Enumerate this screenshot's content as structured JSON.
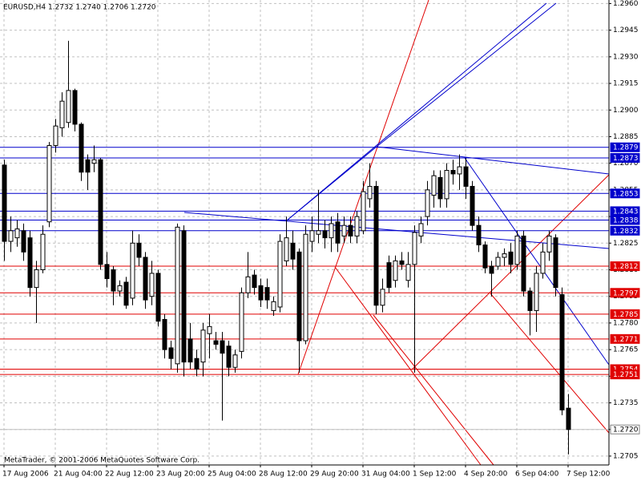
{
  "chart_data": {
    "type": "candlestick",
    "title": "EURUSD,H4  1.2732 1.2740 1.2706 1.2720",
    "footer": "MetaTrader, © 2001-2006 MetaQuotes Software Corp.",
    "categories": [
      "17 Aug 2006",
      null,
      null,
      null,
      null,
      null,
      null,
      null,
      "21 Aug 04:00",
      null,
      null,
      null,
      null,
      null,
      null,
      null,
      "22 Aug 12:00",
      null,
      null,
      null,
      null,
      null,
      null,
      null,
      "23 Aug 20:00",
      null,
      null,
      null,
      null,
      null,
      null,
      null,
      "25 Aug 04:00",
      null,
      null,
      null,
      null,
      null,
      null,
      null,
      "28 Aug 12:00",
      null,
      null,
      null,
      null,
      null,
      null,
      null,
      "29 Aug 20:00",
      null,
      null,
      null,
      null,
      null,
      null,
      null,
      "31 Aug 04:00",
      null,
      null,
      null,
      null,
      null,
      null,
      null,
      "1 Sep 12:00",
      null,
      null,
      null,
      null,
      null,
      null,
      null,
      "4 Sep 20:00",
      null,
      null,
      null,
      null,
      null,
      null,
      null,
      "6 Sep 04:00",
      null,
      null,
      null,
      null,
      null,
      null,
      null,
      "7 Sep 12:00"
    ],
    "open": [
      1.2869,
      1.2826,
      1.2828,
      1.2832,
      1.2828,
      1.28,
      1.281,
      1.2837,
      1.288,
      1.289,
      1.2893,
      1.2911,
      1.2892,
      1.2872,
      1.287,
      1.2872,
      1.2813,
      1.281,
      1.2798,
      1.2803,
      1.2794,
      1.2825,
      1.2817,
      1.2795,
      1.2808,
      1.2782,
      1.2766,
      1.2757,
      1.2832,
      1.2771,
      1.276,
      1.2758,
      1.2774,
      1.277,
      1.277,
      1.2767,
      1.2755,
      1.2764,
      1.2797,
      1.2807,
      1.2801,
      1.28,
      1.2787,
      1.2789,
      1.2815,
      1.2825,
      1.282,
      1.277,
      1.2826,
      1.283,
      1.2832,
      1.2828,
      1.2837,
      1.2829,
      1.2835,
      1.2829,
      1.2832,
      1.285,
      1.2857,
      1.279,
      1.2814,
      1.2804,
      1.2815,
      1.2804,
      1.2813,
      1.2829,
      1.284,
      1.2852,
      1.2862,
      1.285,
      1.2866,
      1.2864,
      1.2868,
      1.2857,
      1.2835,
      1.2824,
      1.2812,
      1.2812,
      1.2817,
      1.282,
      1.2813,
      1.2829,
      1.2798,
      1.2787,
      1.2808,
      1.282,
      1.2828,
      1.2796,
      1.2732
    ],
    "high": [
      1.2872,
      1.284,
      1.2838,
      1.2836,
      1.2832,
      1.2815,
      1.2835,
      1.2882,
      1.2895,
      1.291,
      1.2939,
      1.2912,
      1.2893,
      1.2875,
      1.288,
      1.2873,
      1.282,
      1.2812,
      1.2804,
      1.2806,
      1.2832,
      1.283,
      1.282,
      1.2815,
      1.281,
      1.2785,
      1.277,
      1.2836,
      1.2835,
      1.278,
      1.2765,
      1.278,
      1.2785,
      1.2775,
      1.2775,
      1.277,
      1.2765,
      1.28,
      1.282,
      1.281,
      1.2805,
      1.2805,
      1.2795,
      1.283,
      1.284,
      1.2832,
      1.2822,
      1.2835,
      1.284,
      1.2855,
      1.2838,
      1.284,
      1.2842,
      1.284,
      1.284,
      1.2843,
      1.286,
      1.287,
      1.286,
      1.2805,
      1.2818,
      1.2818,
      1.282,
      1.282,
      1.2835,
      1.284,
      1.286,
      1.2866,
      1.2866,
      1.287,
      1.2872,
      1.2875,
      1.2873,
      1.286,
      1.284,
      1.2826,
      1.2815,
      1.282,
      1.2822,
      1.2825,
      1.2832,
      1.2832,
      1.28,
      1.2812,
      1.2825,
      1.2832,
      1.283,
      1.28,
      1.274
    ],
    "low": [
      1.2815,
      1.282,
      1.2823,
      1.2815,
      1.2795,
      1.278,
      1.2808,
      1.2834,
      1.2876,
      1.2885,
      1.289,
      1.2888,
      1.286,
      1.2855,
      1.2865,
      1.281,
      1.28,
      1.279,
      1.2795,
      1.2788,
      1.279,
      1.2812,
      1.2788,
      1.279,
      1.2778,
      1.276,
      1.2754,
      1.2752,
      1.275,
      1.2754,
      1.275,
      1.275,
      1.276,
      1.2765,
      1.2725,
      1.275,
      1.2752,
      1.276,
      1.2794,
      1.2796,
      1.2789,
      1.2788,
      1.2784,
      1.2786,
      1.2812,
      1.281,
      1.2752,
      1.2768,
      1.282,
      1.2825,
      1.2822,
      1.282,
      1.282,
      1.2825,
      1.2825,
      1.2825,
      1.283,
      1.2845,
      1.2785,
      1.2786,
      1.2797,
      1.28,
      1.281,
      1.28,
      1.2752,
      1.2825,
      1.2835,
      1.2845,
      1.2845,
      1.2845,
      1.2858,
      1.2855,
      1.285,
      1.2832,
      1.282,
      1.2808,
      1.2795,
      1.281,
      1.2812,
      1.2808,
      1.281,
      1.2795,
      1.2773,
      1.2775,
      1.2805,
      1.2815,
      1.2795,
      1.2728,
      1.2706
    ],
    "close": [
      1.2826,
      1.2832,
      1.2833,
      1.282,
      1.28,
      1.281,
      1.283,
      1.288,
      1.2891,
      1.2905,
      1.2911,
      1.2892,
      1.2865,
      1.2865,
      1.2872,
      1.2813,
      1.2805,
      1.2798,
      1.2801,
      1.279,
      1.2825,
      1.2817,
      1.2793,
      1.2808,
      1.2781,
      1.2765,
      1.276,
      1.2834,
      1.2758,
      1.2758,
      1.2754,
      1.2776,
      1.2778,
      1.2768,
      1.2763,
      1.2755,
      1.2762,
      1.2797,
      1.2806,
      1.28,
      1.2793,
      1.2793,
      1.2792,
      1.2826,
      1.2828,
      1.2816,
      1.277,
      1.283,
      1.2832,
      1.2832,
      1.2828,
      1.2836,
      1.2825,
      1.2835,
      1.2829,
      1.284,
      1.2854,
      1.2857,
      1.279,
      1.2799,
      1.28,
      1.2815,
      1.2813,
      1.2813,
      1.2831,
      1.2836,
      1.2855,
      1.2863,
      1.285,
      1.2866,
      1.2864,
      1.2868,
      1.2857,
      1.2835,
      1.2824,
      1.2811,
      1.2808,
      1.2817,
      1.2819,
      1.2813,
      1.2829,
      1.2798,
      1.2787,
      1.2808,
      1.282,
      1.2829,
      1.28,
      1.2731,
      1.272
    ],
    "ylim": [
      1.27,
      1.2962
    ],
    "yticks": [
      {
        "value": 1.2705,
        "label": "1.2705"
      },
      {
        "value": 1.272,
        "label": "1.2720"
      },
      {
        "value": 1.2735,
        "label": "1.2735"
      },
      {
        "value": 1.275,
        "label": "1.2750"
      },
      {
        "value": 1.2765,
        "label": "1.2765"
      },
      {
        "value": 1.278,
        "label": "1.2780"
      },
      {
        "value": 1.2795,
        "label": "1.2795"
      },
      {
        "value": 1.281,
        "label": "1.2810"
      },
      {
        "value": 1.2825,
        "label": "1.2825"
      },
      {
        "value": 1.284,
        "label": "1.2840"
      },
      {
        "value": 1.2855,
        "label": "1.2855"
      },
      {
        "value": 1.287,
        "label": "1.2870"
      },
      {
        "value": 1.2885,
        "label": "1.2885"
      },
      {
        "value": 1.29,
        "label": "1.2900"
      },
      {
        "value": 1.2915,
        "label": "1.2915"
      },
      {
        "value": 1.293,
        "label": "1.2930"
      },
      {
        "value": 1.2945,
        "label": "1.2945"
      },
      {
        "value": 1.296,
        "label": "1.2960"
      }
    ],
    "grid": true,
    "levels": [
      {
        "value": 1.2879,
        "color": "#0000cc"
      },
      {
        "value": 1.2873,
        "color": "#0000cc"
      },
      {
        "value": 1.2853,
        "color": "#0000cc"
      },
      {
        "value": 1.2843,
        "color": "#0000cc"
      },
      {
        "value": 1.2838,
        "color": "#0000cc"
      },
      {
        "value": 1.2832,
        "color": "#0000cc"
      },
      {
        "value": 1.2812,
        "color": "#e00000"
      },
      {
        "value": 1.2797,
        "color": "#e00000"
      },
      {
        "value": 1.2785,
        "color": "#e00000"
      },
      {
        "value": 1.2771,
        "color": "#e00000"
      },
      {
        "value": 1.2754,
        "color": "#e00000"
      },
      {
        "value": 1.2751,
        "color": "#e00000"
      }
    ],
    "current": {
      "value": 1.272,
      "label": "1.2720"
    }
  }
}
